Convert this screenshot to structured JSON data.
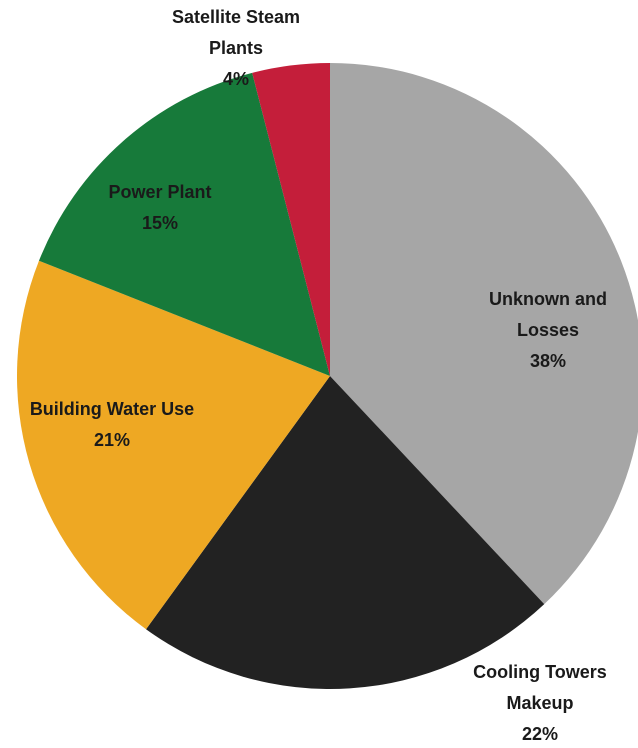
{
  "chart_data": {
    "type": "pie",
    "categories": [
      "Unknown and Losses",
      "Cooling Towers Makeup",
      "Building Water Use",
      "Power Plant",
      "Satellite Steam Plants"
    ],
    "values": [
      38,
      22,
      21,
      15,
      4
    ],
    "value_labels": [
      "38%",
      "22%",
      "21%",
      "15%",
      "4%"
    ],
    "colors": [
      "#a6a6a6",
      "#222222",
      "#eea823",
      "#177a3a",
      "#c41e3a"
    ]
  }
}
